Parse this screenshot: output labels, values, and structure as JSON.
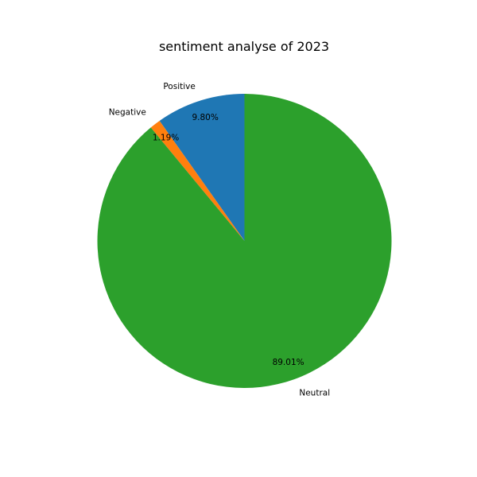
{
  "chart_data": {
    "type": "pie",
    "title": "sentiment analyse of 2023",
    "slices": [
      {
        "label": "Positive",
        "value": 9.8,
        "pct_label": "9.80%",
        "color": "#1f77b4"
      },
      {
        "label": "Negative",
        "value": 1.19,
        "pct_label": "1.19%",
        "color": "#ff7f0e"
      },
      {
        "label": "Neutral",
        "value": 89.01,
        "pct_label": "89.01%",
        "color": "#2ca02c"
      }
    ],
    "start_angle_deg": 90,
    "direction": "counterclockwise"
  }
}
